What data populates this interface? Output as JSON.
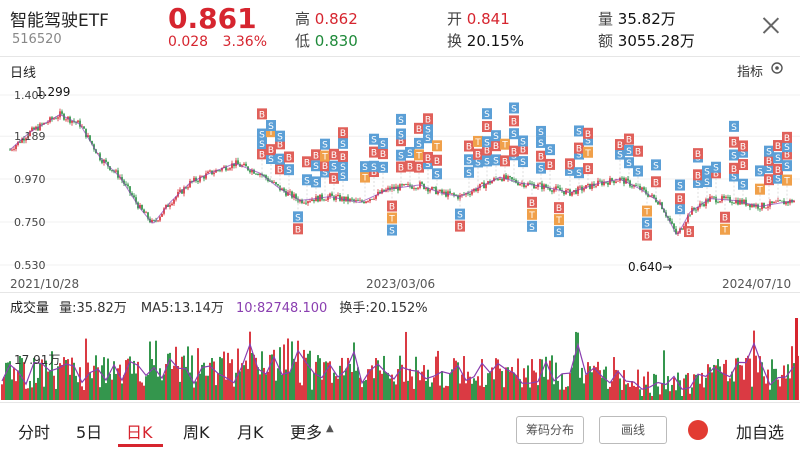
{
  "header": {
    "name": "智能驾驶ETF",
    "code": "516520",
    "price": "0.861",
    "change": "0.028",
    "change_pct": "3.36%",
    "high_label": "高",
    "high": "0.862",
    "low_label": "低",
    "low": "0.830",
    "open_label": "开",
    "open": "0.841",
    "turnover_label": "换",
    "turnover": "20.15%",
    "volume_label": "量",
    "volume": "35.82万",
    "amount_label": "额",
    "amount": "3055.28万"
  },
  "kline": {
    "title": "日线",
    "indicator_label": "指标",
    "y_ticks": [
      "1.400",
      "1.189",
      "0.970",
      "0.750",
      "0.530"
    ],
    "x_labels": [
      "2021/10/28",
      "2023/03/06",
      "2024/07/10"
    ],
    "max_annotation": "1.299",
    "min_annotation": "0.640→",
    "buy_mark": "B",
    "sell_mark": "S",
    "t_mark": "T"
  },
  "volume_panel": {
    "title": "成交量",
    "vol": "量:35.82万",
    "ma5": "MA5:13.14万",
    "ma10": "10:82748.100",
    "turnover": "换手:20.152%",
    "y_tick": "17.91万"
  },
  "tabs": [
    {
      "label": "分时"
    },
    {
      "label": "5日"
    },
    {
      "label": "日K"
    },
    {
      "label": "周K"
    },
    {
      "label": "月K"
    },
    {
      "label": "更多"
    }
  ],
  "buttons": {
    "chip": "筹码分布",
    "draw": "画线",
    "add_fav": "加自选"
  },
  "colors": {
    "up": "#d6252f",
    "down": "#1f8a3a",
    "buy_tag": "#e0605a",
    "sell_tag": "#5b9fd6",
    "t_tag": "#f0a04a",
    "ma": "#8a3fb0"
  }
}
